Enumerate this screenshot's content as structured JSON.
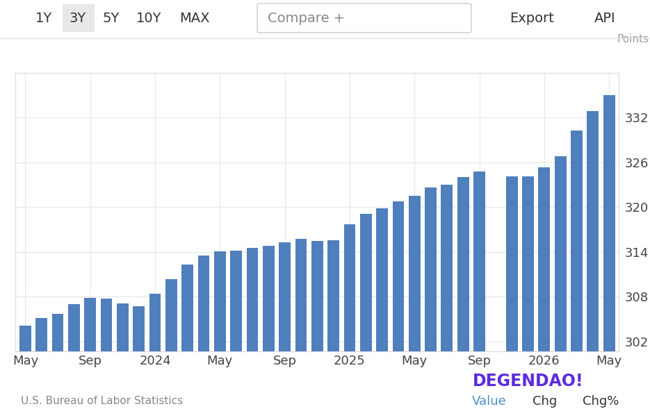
{
  "chart_data": {
    "type": "bar",
    "unit_label": "Points",
    "categories": [
      "May",
      null,
      null,
      null,
      "Sep",
      null,
      null,
      null,
      "2024",
      null,
      null,
      null,
      "May",
      null,
      null,
      null,
      "Sep",
      null,
      null,
      null,
      "2025",
      null,
      null,
      null,
      "May",
      null,
      null,
      null,
      "Sep",
      null,
      null,
      null,
      "2026",
      null,
      null,
      null,
      "May"
    ],
    "values": [
      304.1,
      305.1,
      305.7,
      307.0,
      307.8,
      307.7,
      307.1,
      306.7,
      308.4,
      310.3,
      312.3,
      313.5,
      314.1,
      314.2,
      314.5,
      314.8,
      315.3,
      315.7,
      315.5,
      315.6,
      317.7,
      319.1,
      319.8,
      320.8,
      321.5,
      322.6,
      323.0,
      324.0,
      324.8,
      null,
      324.1,
      324.1,
      325.3,
      326.8,
      330.3,
      332.9,
      335.0
    ],
    "color": "#4f7fbc",
    "ylim": [
      300.7,
      338.0
    ],
    "yticks": [
      302,
      308,
      314,
      320,
      326,
      332
    ],
    "grid": true
  },
  "toolbar": [
    "1Y",
    "3Y",
    "5Y",
    "10Y",
    "MAX",
    "Compare +",
    "Export",
    "API"
  ],
  "source": "U.S. Bureau of Labor Statistics",
  "footer_tabs": [
    "Value",
    "Chg",
    "Chg%"
  ],
  "watermark": "DEGENDAO!"
}
